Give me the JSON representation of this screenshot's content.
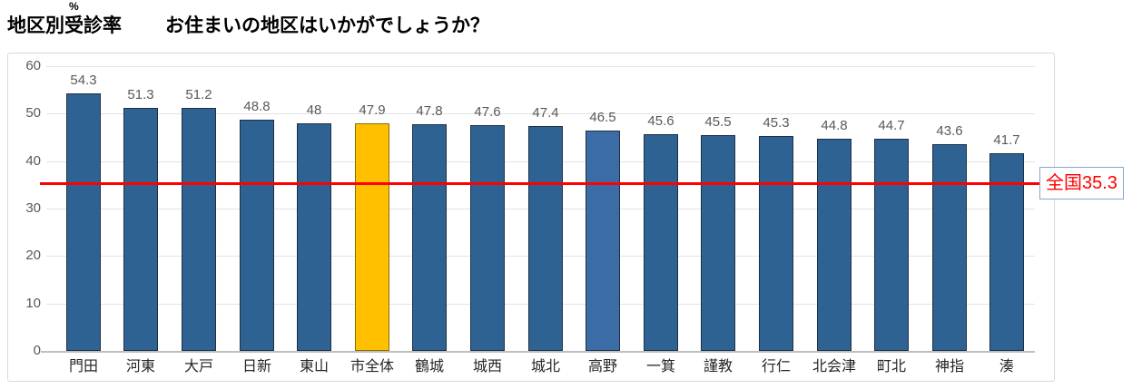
{
  "title": {
    "main": "地区別受診率",
    "question": "お住まいの地区はいかがでしょうか？",
    "unit": "%"
  },
  "chart_data": {
    "type": "bar",
    "categories": [
      "門田",
      "河東",
      "大戸",
      "日新",
      "東山",
      "市全体",
      "鶴城",
      "城西",
      "城北",
      "高野",
      "一箕",
      "謹教",
      "行仁",
      "北会津",
      "町北",
      "神指",
      "湊"
    ],
    "values": [
      54.3,
      51.3,
      51.2,
      48.8,
      48,
      47.9,
      47.8,
      47.6,
      47.4,
      46.5,
      45.6,
      45.5,
      45.3,
      44.8,
      44.7,
      43.6,
      41.7
    ],
    "title": "地区別受診率",
    "xlabel": "",
    "ylabel": "%",
    "ylim": [
      0,
      60
    ],
    "yticks": [
      0,
      10,
      20,
      30,
      40,
      50,
      60
    ],
    "grid": "horizontal",
    "legend": "none",
    "reference_line": {
      "value": 35.3,
      "label": "全国35.3",
      "color": "#FF0000"
    },
    "colors": {
      "bar_fill": "#2E6293",
      "bar_border": "#1F3044",
      "highlight_city_fill": "#FFC000",
      "highlight_city_border": "#8A6D00",
      "highlight_takano_fill": "#3B6CA6",
      "value_label": "#595959",
      "axis_label": "#595959",
      "category_label": "#262626",
      "gridline": "#E3E3E3",
      "axis_line": "#BFBFBF",
      "frame_border": "#D9D9D9",
      "ref_box_border": "#89A4D0"
    },
    "highlights": [
      {
        "index": 5,
        "fill": "#FFC000",
        "border": "#8A6D00"
      },
      {
        "index": 9,
        "fill": "#3B6CA6",
        "border": "#1F3044"
      }
    ]
  }
}
